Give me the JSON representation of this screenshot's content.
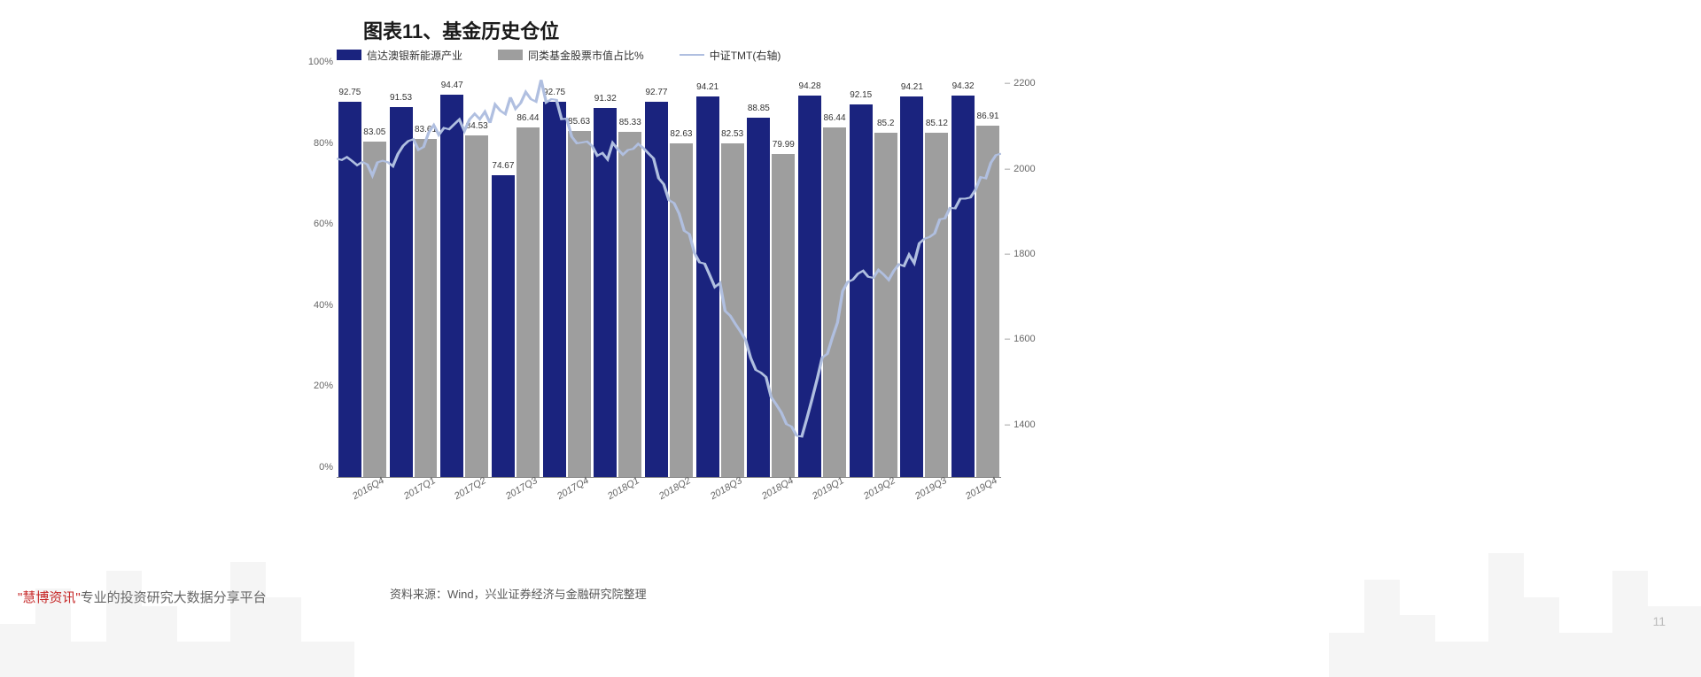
{
  "title": "图表11、基金历史仓位",
  "legend": {
    "series1": "信达澳银新能源产业",
    "series2": "同类基金股票市值占比%",
    "series3": "中证TMT(右轴)"
  },
  "chart": {
    "type": "grouped-bar-with-line",
    "categories": [
      "2016Q4",
      "2017Q1",
      "2017Q2",
      "2017Q3",
      "2017Q4",
      "2018Q1",
      "2018Q2",
      "2018Q3",
      "2018Q4",
      "2019Q1",
      "2019Q2",
      "2019Q3",
      "2019Q4"
    ],
    "series1_values": [
      92.75,
      91.53,
      94.47,
      74.67,
      92.75,
      91.32,
      92.77,
      94.21,
      88.85,
      94.28,
      92.15,
      94.21,
      94.32
    ],
    "series2_values": [
      83.05,
      83.61,
      84.53,
      86.44,
      85.63,
      85.33,
      82.63,
      82.53,
      79.99,
      86.44,
      85.2,
      85.12,
      86.91
    ],
    "line_values": [
      2030,
      2120,
      2150,
      2210,
      2060,
      2070,
      1850,
      1620,
      1380,
      1760,
      1780,
      1920,
      2060
    ],
    "bar1_color": "#1a237e",
    "bar2_color": "#9e9e9e",
    "line_color": "#b0bfe0",
    "line_width": 1.5,
    "y_left": {
      "min": 0,
      "max": 100,
      "ticks": [
        0,
        20,
        40,
        60,
        80,
        100
      ],
      "suffix": "%"
    },
    "y_right": {
      "min": 1300,
      "max": 2250,
      "ticks": [
        1400,
        1600,
        1800,
        2000,
        2200
      ]
    },
    "background_color": "#ffffff",
    "title_fontsize": 22,
    "label_fontsize": 11
  },
  "source": "资料来源：Wind，兴业证券经济与金融研究院整理",
  "platform_brand": "\"慧博资讯\"",
  "platform_text": "专业的投资研究大数据分享平台",
  "page_number": "11"
}
